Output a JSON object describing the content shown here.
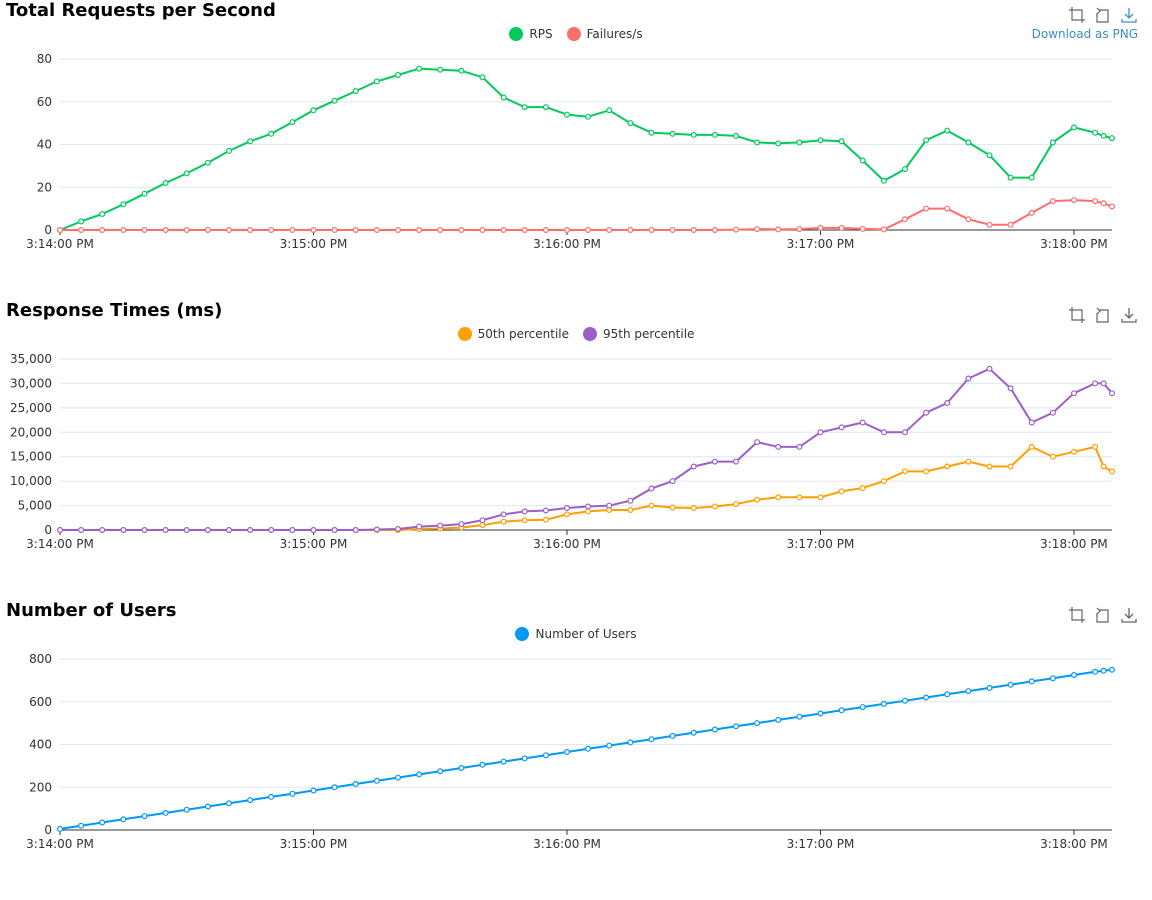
{
  "toolbar": {
    "download_tip": "Download as PNG"
  },
  "chart_data": [
    {
      "type": "line",
      "title": "Total Requests per Second",
      "x_range": [
        "3:14:00 PM",
        "3:18:09 PM"
      ],
      "x_ticks": [
        "3:14:00 PM",
        "3:15:00 PM",
        "3:16:00 PM",
        "3:17:00 PM",
        "3:18:00 PM"
      ],
      "ylim": [
        0,
        80
      ],
      "y_ticks": [
        "0",
        "20",
        "40",
        "60",
        "80"
      ],
      "grid": true,
      "legend_position": "top-center",
      "series": [
        {
          "name": "RPS",
          "color": "#00ca5a",
          "x": [
            "3:14:00 PM",
            "3:14:05 PM",
            "3:14:10 PM",
            "3:14:15 PM",
            "3:14:20 PM",
            "3:14:25 PM",
            "3:14:30 PM",
            "3:14:35 PM",
            "3:14:40 PM",
            "3:14:45 PM",
            "3:14:50 PM",
            "3:14:55 PM",
            "3:15:00 PM",
            "3:15:05 PM",
            "3:15:10 PM",
            "3:15:15 PM",
            "3:15:20 PM",
            "3:15:25 PM",
            "3:15:30 PM",
            "3:15:35 PM",
            "3:15:40 PM",
            "3:15:45 PM",
            "3:15:50 PM",
            "3:15:55 PM",
            "3:16:00 PM",
            "3:16:05 PM",
            "3:16:10 PM",
            "3:16:15 PM",
            "3:16:20 PM",
            "3:16:25 PM",
            "3:16:30 PM",
            "3:16:35 PM",
            "3:16:40 PM",
            "3:16:45 PM",
            "3:16:50 PM",
            "3:16:55 PM",
            "3:17:00 PM",
            "3:17:05 PM",
            "3:17:10 PM",
            "3:17:15 PM",
            "3:17:20 PM",
            "3:17:25 PM",
            "3:17:30 PM",
            "3:17:35 PM",
            "3:17:40 PM",
            "3:17:45 PM",
            "3:17:50 PM",
            "3:17:55 PM",
            "3:18:00 PM",
            "3:18:05 PM",
            "3:18:07 PM",
            "3:18:09 PM"
          ],
          "values": [
            0,
            4,
            7.5,
            12,
            17,
            22,
            26.5,
            31.5,
            37,
            41.5,
            45,
            50.5,
            56,
            60.5,
            65,
            69.5,
            72.5,
            75.5,
            75,
            74.5,
            71.5,
            62,
            57.5,
            57.5,
            54,
            53,
            56,
            50,
            45.5,
            45,
            44.5,
            44.5,
            44,
            41,
            40.5,
            41,
            42,
            41.5,
            32.5,
            23,
            28.5,
            42,
            46.5,
            41,
            35,
            24.5,
            24.5,
            41,
            48,
            45.5,
            44,
            43
          ]
        },
        {
          "name": "Failures/s",
          "color": "#ff6d6d",
          "x": [
            "3:14:00 PM",
            "3:14:05 PM",
            "3:14:10 PM",
            "3:14:15 PM",
            "3:14:20 PM",
            "3:14:25 PM",
            "3:14:30 PM",
            "3:14:35 PM",
            "3:14:40 PM",
            "3:14:45 PM",
            "3:14:50 PM",
            "3:14:55 PM",
            "3:15:00 PM",
            "3:15:05 PM",
            "3:15:10 PM",
            "3:15:15 PM",
            "3:15:20 PM",
            "3:15:25 PM",
            "3:15:30 PM",
            "3:15:35 PM",
            "3:15:40 PM",
            "3:15:45 PM",
            "3:15:50 PM",
            "3:15:55 PM",
            "3:16:00 PM",
            "3:16:05 PM",
            "3:16:10 PM",
            "3:16:15 PM",
            "3:16:20 PM",
            "3:16:25 PM",
            "3:16:30 PM",
            "3:16:35 PM",
            "3:16:40 PM",
            "3:16:45 PM",
            "3:16:50 PM",
            "3:16:55 PM",
            "3:17:00 PM",
            "3:17:05 PM",
            "3:17:10 PM",
            "3:17:15 PM",
            "3:17:20 PM",
            "3:17:25 PM",
            "3:17:30 PM",
            "3:17:35 PM",
            "3:17:40 PM",
            "3:17:45 PM",
            "3:17:50 PM",
            "3:17:55 PM",
            "3:18:00 PM",
            "3:18:05 PM",
            "3:18:07 PM",
            "3:18:09 PM"
          ],
          "values": [
            0,
            0,
            0,
            0,
            0,
            0,
            0,
            0,
            0,
            0,
            0,
            0,
            0,
            0,
            0,
            0,
            0,
            0,
            0,
            0,
            0,
            0,
            0,
            0,
            0,
            0,
            0,
            0,
            0,
            0,
            0,
            0,
            0.2,
            0.4,
            0.3,
            0.4,
            1,
            1,
            0.5,
            0.3,
            5,
            10,
            10,
            5,
            2.5,
            2.5,
            8,
            13.5,
            14,
            13.5,
            12.5,
            11
          ]
        }
      ]
    },
    {
      "type": "line",
      "title": "Response Times (ms)",
      "x_range": [
        "3:14:00 PM",
        "3:18:09 PM"
      ],
      "x_ticks": [
        "3:14:00 PM",
        "3:15:00 PM",
        "3:16:00 PM",
        "3:17:00 PM",
        "3:18:00 PM"
      ],
      "ylim": [
        0,
        35000
      ],
      "y_ticks": [
        "0",
        "5,000",
        "10,000",
        "15,000",
        "20,000",
        "25,000",
        "30,000",
        "35,000"
      ],
      "grid": true,
      "legend_position": "top-center",
      "series": [
        {
          "name": "50th percentile",
          "color": "#ff9f00",
          "x": [
            "3:14:00 PM",
            "3:14:05 PM",
            "3:14:10 PM",
            "3:14:15 PM",
            "3:14:20 PM",
            "3:14:25 PM",
            "3:14:30 PM",
            "3:14:35 PM",
            "3:14:40 PM",
            "3:14:45 PM",
            "3:14:50 PM",
            "3:14:55 PM",
            "3:15:00 PM",
            "3:15:05 PM",
            "3:15:10 PM",
            "3:15:15 PM",
            "3:15:20 PM",
            "3:15:25 PM",
            "3:15:30 PM",
            "3:15:35 PM",
            "3:15:40 PM",
            "3:15:45 PM",
            "3:15:50 PM",
            "3:15:55 PM",
            "3:16:00 PM",
            "3:16:05 PM",
            "3:16:10 PM",
            "3:16:15 PM",
            "3:16:20 PM",
            "3:16:25 PM",
            "3:16:30 PM",
            "3:16:35 PM",
            "3:16:40 PM",
            "3:16:45 PM",
            "3:16:50 PM",
            "3:16:55 PM",
            "3:17:00 PM",
            "3:17:05 PM",
            "3:17:10 PM",
            "3:17:15 PM",
            "3:17:20 PM",
            "3:17:25 PM",
            "3:17:30 PM",
            "3:17:35 PM",
            "3:17:40 PM",
            "3:17:45 PM",
            "3:17:50 PM",
            "3:17:55 PM",
            "3:18:00 PM",
            "3:18:05 PM",
            "3:18:07 PM",
            "3:18:09 PM"
          ],
          "values": [
            0,
            0,
            0,
            0,
            0,
            0,
            0,
            0,
            0,
            0,
            0,
            0,
            0,
            0,
            0,
            0,
            0,
            200,
            300,
            500,
            1000,
            1700,
            2000,
            2100,
            3200,
            3800,
            4100,
            4100,
            5000,
            4600,
            4500,
            4800,
            5300,
            6200,
            6700,
            6700,
            6700,
            7900,
            8600,
            10000,
            12000,
            12000,
            13000,
            14000,
            13000,
            13000,
            17000,
            15000,
            16000,
            17000,
            13000,
            12000
          ]
        },
        {
          "name": "95th percentile",
          "color": "#9c5fc9",
          "x": [
            "3:14:00 PM",
            "3:14:05 PM",
            "3:14:10 PM",
            "3:14:15 PM",
            "3:14:20 PM",
            "3:14:25 PM",
            "3:14:30 PM",
            "3:14:35 PM",
            "3:14:40 PM",
            "3:14:45 PM",
            "3:14:50 PM",
            "3:14:55 PM",
            "3:15:00 PM",
            "3:15:05 PM",
            "3:15:10 PM",
            "3:15:15 PM",
            "3:15:20 PM",
            "3:15:25 PM",
            "3:15:30 PM",
            "3:15:35 PM",
            "3:15:40 PM",
            "3:15:45 PM",
            "3:15:50 PM",
            "3:15:55 PM",
            "3:16:00 PM",
            "3:16:05 PM",
            "3:16:10 PM",
            "3:16:15 PM",
            "3:16:20 PM",
            "3:16:25 PM",
            "3:16:30 PM",
            "3:16:35 PM",
            "3:16:40 PM",
            "3:16:45 PM",
            "3:16:50 PM",
            "3:16:55 PM",
            "3:17:00 PM",
            "3:17:05 PM",
            "3:17:10 PM",
            "3:17:15 PM",
            "3:17:20 PM",
            "3:17:25 PM",
            "3:17:30 PM",
            "3:17:35 PM",
            "3:17:40 PM",
            "3:17:45 PM",
            "3:17:50 PM",
            "3:17:55 PM",
            "3:18:00 PM",
            "3:18:05 PM",
            "3:18:07 PM",
            "3:18:09 PM"
          ],
          "values": [
            0,
            0,
            0,
            0,
            0,
            0,
            0,
            0,
            0,
            0,
            0,
            0,
            0,
            0,
            0,
            100,
            200,
            700,
            900,
            1200,
            2000,
            3200,
            3800,
            4000,
            4500,
            4800,
            5000,
            6000,
            8500,
            10000,
            13000,
            14000,
            14000,
            18000,
            17000,
            17000,
            20000,
            21000,
            22000,
            20000,
            20000,
            24000,
            26000,
            31000,
            33000,
            29000,
            22000,
            24000,
            28000,
            30000,
            30000,
            28000
          ]
        }
      ]
    },
    {
      "type": "line",
      "title": "Number of Users",
      "x_range": [
        "3:14:00 PM",
        "3:18:09 PM"
      ],
      "x_ticks": [
        "3:14:00 PM",
        "3:15:00 PM",
        "3:16:00 PM",
        "3:17:00 PM",
        "3:18:00 PM"
      ],
      "ylim": [
        0,
        800
      ],
      "y_ticks": [
        "0",
        "200",
        "400",
        "600",
        "800"
      ],
      "grid": true,
      "legend_position": "top-center",
      "series": [
        {
          "name": "Number of Users",
          "color": "#0098f7",
          "x": [
            "3:14:00 PM",
            "3:14:05 PM",
            "3:14:10 PM",
            "3:14:15 PM",
            "3:14:20 PM",
            "3:14:25 PM",
            "3:14:30 PM",
            "3:14:35 PM",
            "3:14:40 PM",
            "3:14:45 PM",
            "3:14:50 PM",
            "3:14:55 PM",
            "3:15:00 PM",
            "3:15:05 PM",
            "3:15:10 PM",
            "3:15:15 PM",
            "3:15:20 PM",
            "3:15:25 PM",
            "3:15:30 PM",
            "3:15:35 PM",
            "3:15:40 PM",
            "3:15:45 PM",
            "3:15:50 PM",
            "3:15:55 PM",
            "3:16:00 PM",
            "3:16:05 PM",
            "3:16:10 PM",
            "3:16:15 PM",
            "3:16:20 PM",
            "3:16:25 PM",
            "3:16:30 PM",
            "3:16:35 PM",
            "3:16:40 PM",
            "3:16:45 PM",
            "3:16:50 PM",
            "3:16:55 PM",
            "3:17:00 PM",
            "3:17:05 PM",
            "3:17:10 PM",
            "3:17:15 PM",
            "3:17:20 PM",
            "3:17:25 PM",
            "3:17:30 PM",
            "3:17:35 PM",
            "3:17:40 PM",
            "3:17:45 PM",
            "3:17:50 PM",
            "3:17:55 PM",
            "3:18:00 PM",
            "3:18:05 PM",
            "3:18:07 PM",
            "3:18:09 PM"
          ],
          "values": [
            5,
            20,
            35,
            50,
            65,
            80,
            95,
            110,
            125,
            140,
            155,
            170,
            185,
            200,
            215,
            230,
            245,
            260,
            275,
            290,
            305,
            320,
            335,
            350,
            365,
            380,
            395,
            410,
            425,
            440,
            455,
            470,
            485,
            500,
            515,
            530,
            545,
            560,
            575,
            590,
            605,
            620,
            635,
            650,
            665,
            680,
            695,
            710,
            725,
            740,
            745,
            750
          ]
        }
      ]
    }
  ]
}
